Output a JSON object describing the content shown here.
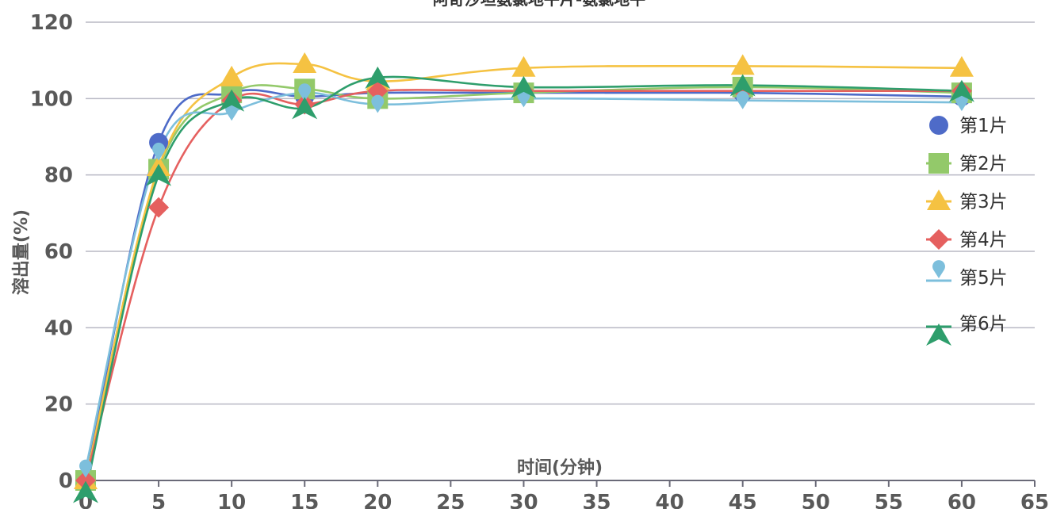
{
  "chart_data": {
    "type": "line",
    "title": "阿奇沙坦氨氯地平片-氨氯地平",
    "xlabel": "时间(分钟)",
    "ylabel": "溶出量(%)",
    "xlim": [
      0,
      65
    ],
    "ylim": [
      0,
      120
    ],
    "xticks": [
      0,
      5,
      10,
      15,
      20,
      25,
      30,
      35,
      40,
      45,
      50,
      55,
      60,
      65
    ],
    "yticks": [
      0,
      20,
      40,
      60,
      80,
      100,
      120
    ],
    "grid": true,
    "legend_position": "right",
    "x": [
      0,
      5,
      10,
      15,
      20,
      30,
      45,
      60
    ],
    "series": [
      {
        "name": "第1片",
        "marker": "circle",
        "color": "#4e6bc8",
        "values": [
          0,
          88.5,
          101.5,
          100.5,
          101.5,
          101.5,
          101.5,
          100.5
        ]
      },
      {
        "name": "第2片",
        "marker": "square",
        "color": "#93c96a",
        "values": [
          0,
          81.5,
          101.5,
          102.5,
          100.0,
          101.5,
          103.0,
          101.5
        ]
      },
      {
        "name": "第3片",
        "marker": "triangle",
        "color": "#f5c242",
        "values": [
          0,
          82.0,
          105.5,
          109.0,
          104.5,
          108.0,
          108.5,
          108.0
        ]
      },
      {
        "name": "第4片",
        "marker": "diamond",
        "color": "#e5605f",
        "values": [
          0,
          71.5,
          99.5,
          98.5,
          102.0,
          102.0,
          102.0,
          102.0
        ]
      },
      {
        "name": "第5片",
        "marker": "pin",
        "color": "#7dbfdc",
        "values": [
          3.0,
          86.0,
          96.5,
          101.5,
          98.5,
          100.0,
          99.5,
          99.0
        ]
      },
      {
        "name": "第6片",
        "marker": "arrow",
        "color": "#2e9e6c",
        "values": [
          -3.0,
          80.0,
          99.5,
          97.5,
          105.5,
          103.0,
          103.5,
          102.0
        ]
      }
    ]
  }
}
